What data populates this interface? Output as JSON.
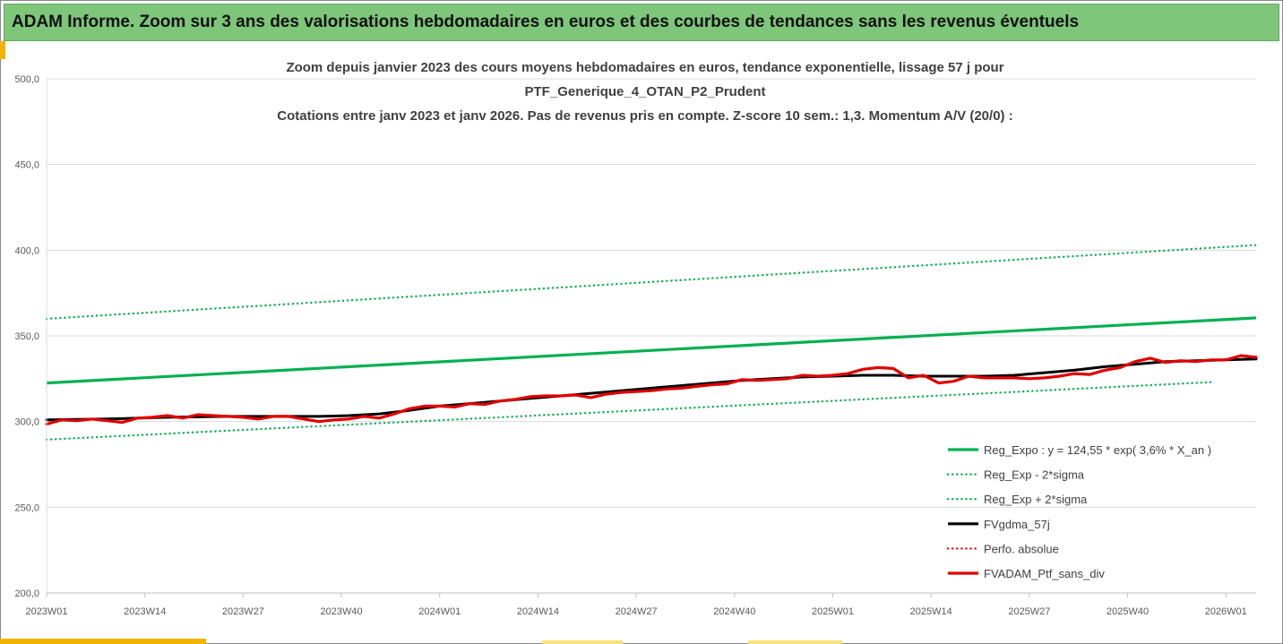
{
  "header": {
    "title": "ADAM Informe. Zoom sur 3 ans des valorisations hebdomadaires en euros et des courbes de tendances sans les revenus éventuels"
  },
  "colors": {
    "header_bg": "#7dc67a",
    "green": "#00b050",
    "black": "#000000",
    "red": "#e00000",
    "accent": "#f0b400"
  },
  "chart_data": {
    "type": "line",
    "title_lines": [
      "Zoom depuis janvier 2023 des cours moyens hebdomadaires  en euros, tendance exponentielle, lissage 57 j pour",
      "PTF_Generique_4_OTAN_P2_Prudent",
      "Cotations  entre janv 2023 et janv 2026. Pas de revenus pris en compte. Z-score 10 sem.: 1,3. Momentum A/V (20/0) :"
    ],
    "ylim": [
      200,
      500
    ],
    "y_ticks": [
      "500,0",
      "450,0",
      "400,0",
      "350,0",
      "300,0",
      "250,0",
      "200,0"
    ],
    "y_tick_values": [
      500,
      450,
      400,
      350,
      300,
      250,
      200
    ],
    "x_ticks": [
      "2023W01",
      "2023W14",
      "2023W27",
      "2023W40",
      "2024W01",
      "2024W14",
      "2024W27",
      "2024W40",
      "2025W01",
      "2025W14",
      "2025W27",
      "2025W40",
      "2026W01"
    ],
    "x_tick_weeks": [
      0,
      13,
      26,
      39,
      52,
      65,
      78,
      91,
      104,
      117,
      130,
      143,
      156
    ],
    "x_range": [
      0,
      160
    ],
    "legend": [
      {
        "label": "Reg_Expo : y = 124,55 * exp( 3,6% *  X_an )",
        "style": "solid",
        "color": "#00b050"
      },
      {
        "label": "Reg_Exp - 2*sigma",
        "style": "dotted",
        "color": "#00b050"
      },
      {
        "label": "Reg_Exp + 2*sigma",
        "style": "dotted",
        "color": "#00b050"
      },
      {
        "label": "FVgdma_57j",
        "style": "solid",
        "color": "#000000"
      },
      {
        "label": "Perfo. absolue",
        "style": "dotted",
        "color": "#e00000"
      },
      {
        "label": "FVADAM_Ptf_sans_div",
        "style": "solid",
        "color": "#e00000"
      }
    ],
    "series": [
      {
        "name": "Reg_Expo",
        "x": [
          0,
          160
        ],
        "values": [
          322.5,
          360.5
        ]
      },
      {
        "name": "Reg_Exp - 2*sigma",
        "x": [
          0,
          154
        ],
        "values": [
          289.5,
          323
        ]
      },
      {
        "name": "Reg_Exp + 2*sigma",
        "x": [
          0,
          160
        ],
        "values": [
          360,
          403
        ]
      },
      {
        "name": "FVgdma_57j",
        "x": [
          0,
          8,
          16,
          24,
          32,
          36,
          40,
          44,
          48,
          52,
          56,
          60,
          64,
          68,
          72,
          76,
          80,
          84,
          88,
          92,
          96,
          100,
          104,
          108,
          112,
          116,
          120,
          124,
          128,
          132,
          136,
          140,
          144,
          148,
          152,
          156,
          160
        ],
        "values": [
          301,
          301.5,
          302.5,
          303,
          303,
          303,
          303.5,
          304.5,
          306.5,
          309,
          310.5,
          312,
          313.5,
          315,
          316.5,
          318,
          319.5,
          321,
          322.5,
          324,
          325,
          326,
          326.5,
          327,
          327,
          326.5,
          326.5,
          326.5,
          327,
          328.5,
          330,
          332,
          333.5,
          335,
          335.5,
          336,
          336.5
        ]
      },
      {
        "name": "FVADAM_Ptf_sans_div",
        "x": [
          0,
          2,
          4,
          6,
          8,
          10,
          12,
          14,
          16,
          18,
          20,
          22,
          24,
          26,
          28,
          30,
          32,
          34,
          36,
          38,
          40,
          42,
          44,
          46,
          48,
          50,
          52,
          54,
          56,
          58,
          60,
          62,
          64,
          66,
          68,
          70,
          72,
          74,
          76,
          78,
          80,
          82,
          84,
          86,
          88,
          90,
          92,
          94,
          96,
          98,
          100,
          102,
          104,
          106,
          108,
          110,
          112,
          114,
          116,
          118,
          120,
          122,
          124,
          126,
          128,
          130,
          132,
          134,
          136,
          138,
          140,
          142,
          144,
          146,
          148,
          150,
          152,
          154,
          156,
          158,
          160
        ],
        "values": [
          298.5,
          301,
          300.5,
          301.5,
          300.5,
          299.5,
          302,
          302.5,
          303.5,
          302,
          304,
          303.5,
          303,
          302.5,
          301.5,
          303,
          303,
          301.5,
          300,
          301,
          301.5,
          303,
          302,
          304.5,
          307.5,
          309,
          309,
          308.5,
          310.5,
          310,
          312,
          313,
          314.5,
          315,
          315,
          315.5,
          314,
          316,
          317,
          317.5,
          318,
          319,
          319.5,
          320.5,
          321.5,
          322,
          324.5,
          324,
          324.5,
          325,
          327,
          326.5,
          327,
          328,
          330.5,
          331.5,
          331,
          325.5,
          327,
          322.5,
          323.5,
          326.5,
          325.5,
          325.5,
          325.5,
          325,
          325.5,
          326.5,
          328,
          327.5,
          330,
          331.5,
          335,
          337,
          334.5,
          335.5,
          335,
          336,
          336,
          338.5,
          337.5
        ]
      }
    ]
  }
}
